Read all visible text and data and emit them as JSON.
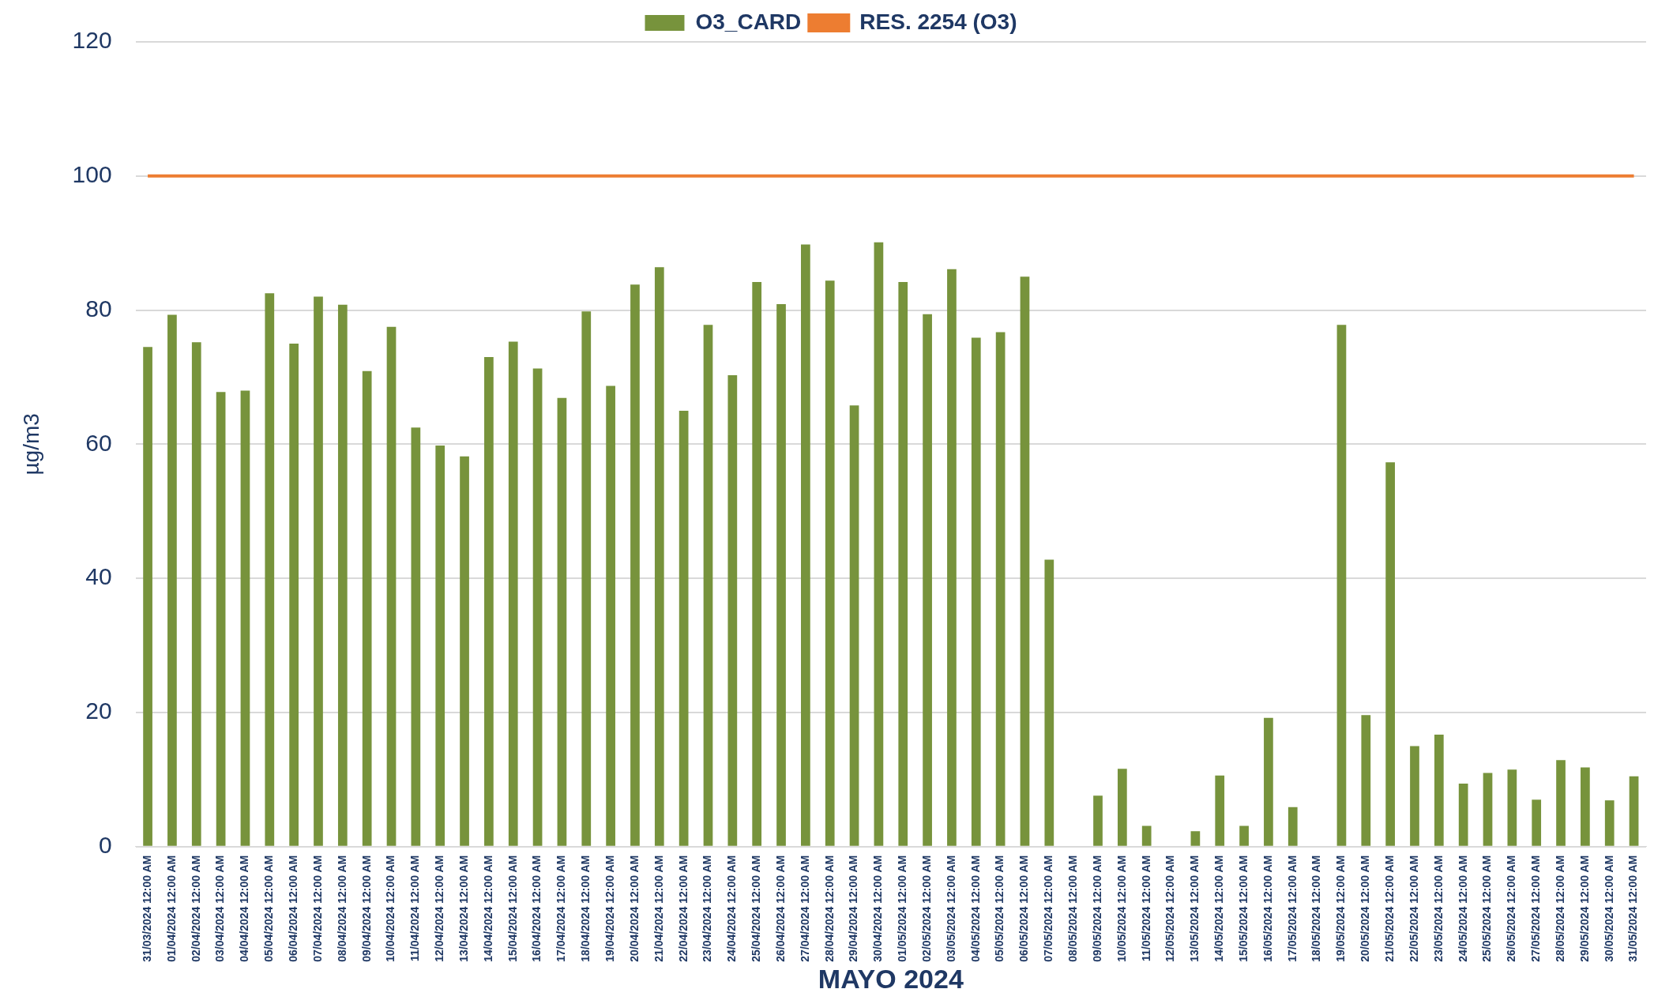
{
  "chart_data": {
    "type": "bar",
    "xlabel": "MAYO 2024",
    "ylabel": "µg/m3",
    "categories": [
      "31/03/2024 12:00 AM",
      "01/04/2024 12:00 AM",
      "02/04/2024 12:00 AM",
      "03/04/2024 12:00 AM",
      "04/04/2024 12:00 AM",
      "05/04/2024 12:00 AM",
      "06/04/2024 12:00 AM",
      "07/04/2024 12:00 AM",
      "08/04/2024 12:00 AM",
      "09/04/2024 12:00 AM",
      "10/04/2024 12:00 AM",
      "11/04/2024 12:00 AM",
      "12/04/2024 12:00 AM",
      "13/04/2024 12:00 AM",
      "14/04/2024 12:00 AM",
      "15/04/2024 12:00 AM",
      "16/04/2024 12:00 AM",
      "17/04/2024 12:00 AM",
      "18/04/2024 12:00 AM",
      "19/04/2024 12:00 AM",
      "20/04/2024 12:00 AM",
      "21/04/2024 12:00 AM",
      "22/04/2024 12:00 AM",
      "23/04/2024 12:00 AM",
      "24/04/2024 12:00 AM",
      "25/04/2024 12:00 AM",
      "26/04/2024 12:00 AM",
      "27/04/2024 12:00 AM",
      "28/04/2024 12:00 AM",
      "29/04/2024 12:00 AM",
      "30/04/2024 12:00 AM",
      "01/05/2024 12:00 AM",
      "02/05/2024 12:00 AM",
      "03/05/2024 12:00 AM",
      "04/05/2024 12:00 AM",
      "05/05/2024 12:00 AM",
      "06/05/2024 12:00 AM",
      "07/05/2024 12:00 AM",
      "08/05/2024 12:00 AM",
      "09/05/2024 12:00 AM",
      "10/05/2024 12:00 AM",
      "11/05/2024 12:00 AM",
      "12/05/2024 12:00 AM",
      "13/05/2024 12:00 AM",
      "14/05/2024 12:00 AM",
      "15/05/2024 12:00 AM",
      "16/05/2024 12:00 AM",
      "17/05/2024 12:00 AM",
      "18/05/2024 12:00 AM",
      "19/05/2024 12:00 AM",
      "20/05/2024 12:00 AM",
      "21/05/2024 12:00 AM",
      "22/05/2024 12:00 AM",
      "23/05/2024 12:00 AM",
      "24/05/2024 12:00 AM",
      "25/05/2024 12:00 AM",
      "26/05/2024 12:00 AM",
      "27/05/2024 12:00 AM",
      "28/05/2024 12:00 AM",
      "29/05/2024 12:00 AM",
      "30/05/2024 12:00 AM",
      "31/05/2024 12:00 AM"
    ],
    "series": [
      {
        "name": "O3_CARD",
        "color": "#77933c",
        "values": [
          74.5,
          79.3,
          75.2,
          67.8,
          68,
          82.5,
          75,
          82,
          80.8,
          70.9,
          77.5,
          62.5,
          59.8,
          58.2,
          73,
          75.3,
          71.3,
          66.9,
          79.8,
          68.7,
          83.8,
          86.4,
          65,
          77.8,
          70.3,
          84.2,
          80.9,
          89.8,
          84.4,
          65.8,
          90.1,
          84.2,
          79.4,
          86.1,
          75.9,
          76.7,
          85,
          42.8,
          null,
          7.6,
          11.6,
          3.1,
          null,
          2.3,
          10.6,
          3.1,
          19.2,
          5.9,
          null,
          77.8,
          19.6,
          57.3,
          15,
          16.7,
          9.4,
          11,
          11.5,
          7,
          12.9,
          11.8,
          6.9,
          10.5
        ]
      },
      {
        "name": "RES. 2254 (O3)",
        "type": "line",
        "color": "#ed7d31",
        "values": [
          100,
          100,
          100,
          100,
          100,
          100,
          100,
          100,
          100,
          100,
          100,
          100,
          100,
          100,
          100,
          100,
          100,
          100,
          100,
          100,
          100,
          100,
          100,
          100,
          100,
          100,
          100,
          100,
          100,
          100,
          100,
          100,
          100,
          100,
          100,
          100,
          100,
          100,
          100,
          100,
          100,
          100,
          100,
          100,
          100,
          100,
          100,
          100,
          100,
          100,
          100,
          100,
          100,
          100,
          100,
          100,
          100,
          100,
          100,
          100,
          100,
          100
        ]
      }
    ],
    "ylim": [
      0,
      120
    ],
    "yticks": [
      0,
      20,
      40,
      60,
      80,
      100,
      120
    ],
    "grid": "y",
    "legend": "top",
    "marker": "none"
  }
}
